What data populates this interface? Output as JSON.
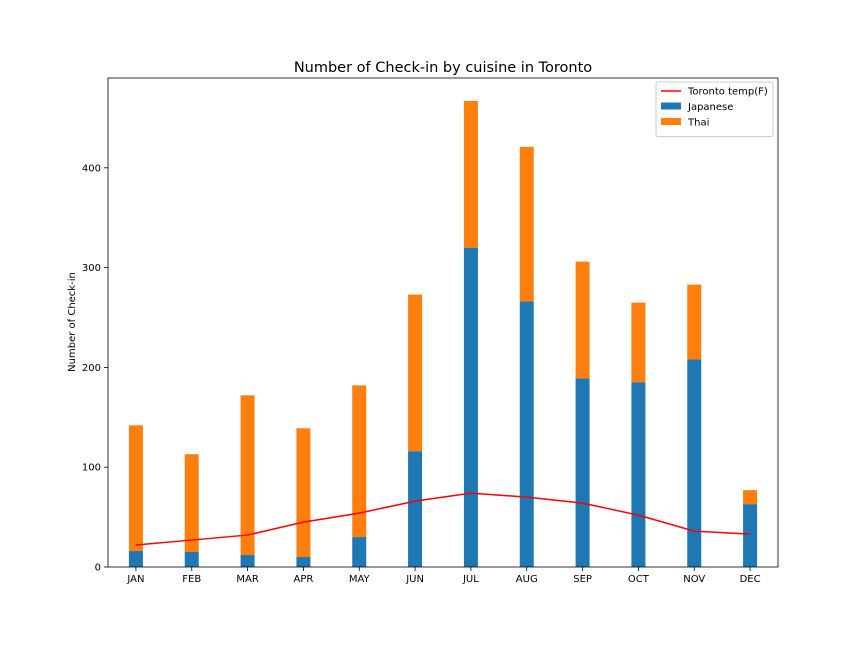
{
  "chart_data": {
    "type": "bar",
    "stacked": true,
    "title": "Number of Check-in by cuisine in Toronto",
    "xlabel": "",
    "ylabel": "Number of Check-in",
    "ylim": [
      0,
      490
    ],
    "yticks": [
      0,
      100,
      200,
      300,
      400
    ],
    "categories": [
      "JAN",
      "FEB",
      "MAR",
      "APR",
      "MAY",
      "JUN",
      "JUL",
      "AUG",
      "SEP",
      "OCT",
      "NOV",
      "DEC"
    ],
    "series": [
      {
        "name": "Japanese",
        "kind": "bar",
        "color": "#1f77b4",
        "values": [
          16,
          15,
          12,
          10,
          30,
          116,
          320,
          266,
          189,
          185,
          208,
          63
        ]
      },
      {
        "name": "Thai",
        "kind": "bar",
        "color": "#ff7f0e",
        "values": [
          126,
          98,
          160,
          129,
          152,
          157,
          147,
          155,
          117,
          80,
          75,
          14
        ]
      },
      {
        "name": "Toronto temp(F)",
        "kind": "line",
        "color": "#ff0000",
        "values": [
          22,
          27,
          32,
          45,
          54,
          66,
          74,
          70,
          64,
          52,
          36,
          33
        ]
      }
    ],
    "grid": false,
    "legend": "top-right",
    "legend_order": [
      "Toronto temp(F)",
      "Japanese",
      "Thai"
    ]
  }
}
